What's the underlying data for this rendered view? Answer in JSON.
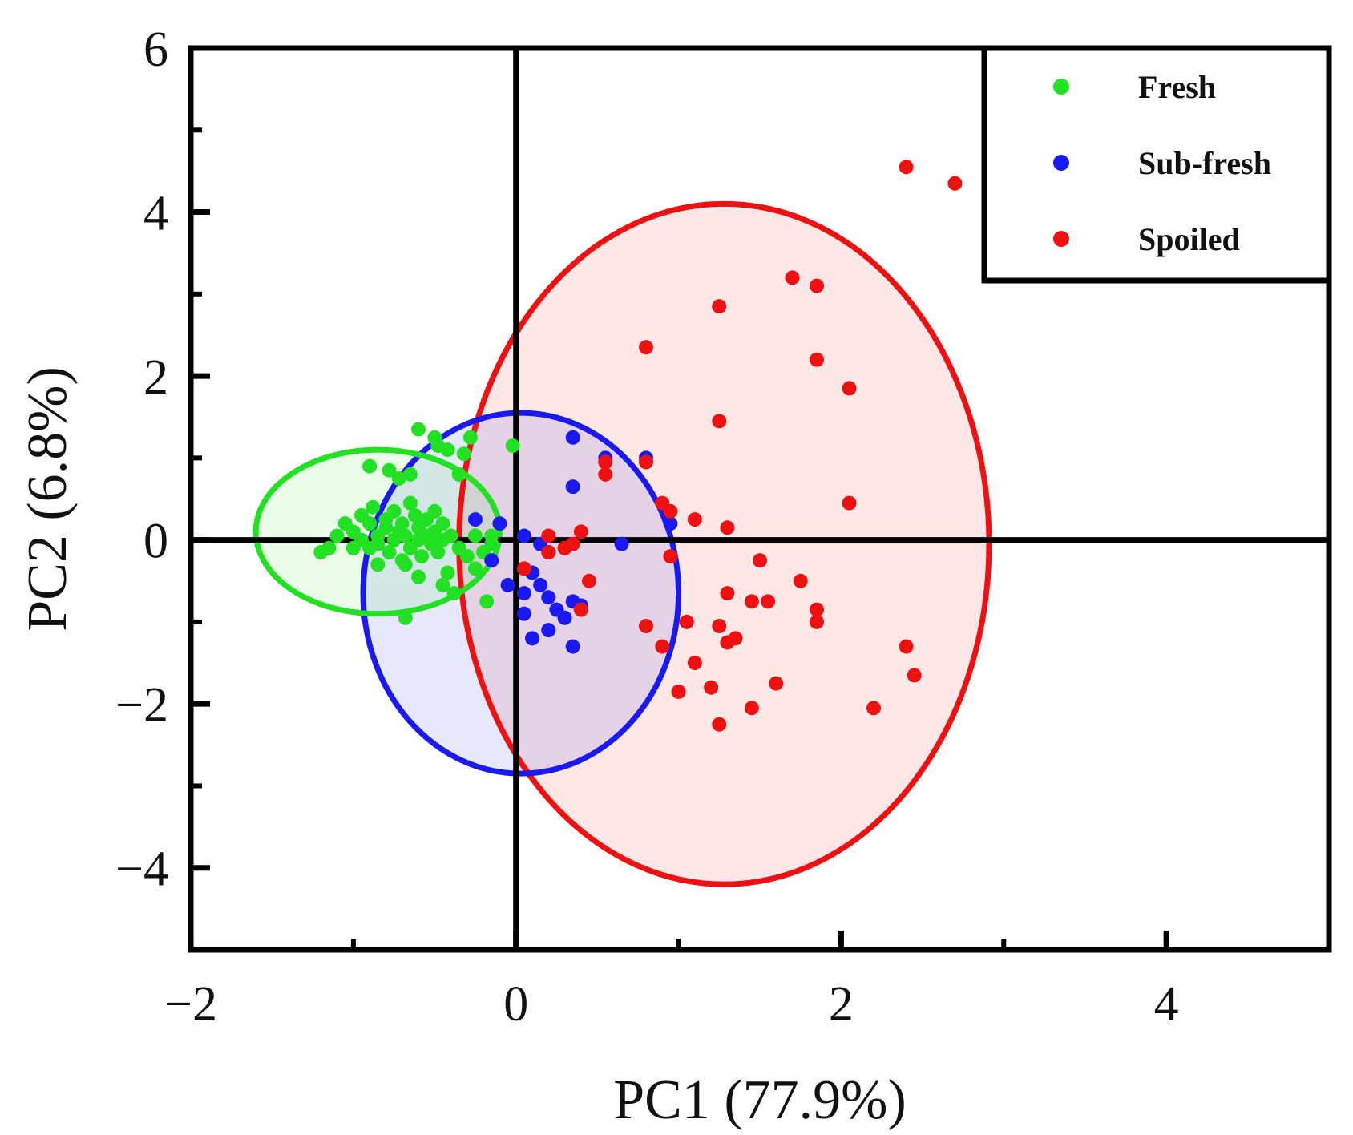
{
  "chart_data": {
    "type": "scatter",
    "title": "",
    "xlabel": "PC1 (77.9%)",
    "ylabel": "PC2 (6.8%)",
    "xlim": [
      -2,
      5
    ],
    "ylim": [
      -5,
      6
    ],
    "x_ticks": [
      -2,
      0,
      2,
      4
    ],
    "x_tick_labels": [
      "−2",
      "0",
      "2",
      "4"
    ],
    "y_ticks": [
      -4,
      -2,
      0,
      2,
      4,
      6
    ],
    "y_tick_labels": [
      "−4",
      "−2",
      "0",
      "2",
      "4",
      "6"
    ],
    "reference_lines": {
      "x": 0,
      "y": 0
    },
    "legend_position": "top-right",
    "series": [
      {
        "name": "Fresh",
        "color": "#22e022",
        "ellipse": {
          "center": [
            -0.85,
            0.1
          ],
          "radius_x": 0.75,
          "radius_y": 1.0
        },
        "points": [
          [
            -1.2,
            -0.15
          ],
          [
            -1.15,
            -0.1
          ],
          [
            -1.1,
            0.05
          ],
          [
            -1.05,
            0.2
          ],
          [
            -1.0,
            0.1
          ],
          [
            -1.0,
            -0.1
          ],
          [
            -0.95,
            0.3
          ],
          [
            -0.95,
            0.0
          ],
          [
            -0.9,
            -0.1
          ],
          [
            -0.9,
            0.2
          ],
          [
            -0.88,
            0.4
          ],
          [
            -0.85,
            0.05
          ],
          [
            -0.85,
            -0.05
          ],
          [
            -0.8,
            0.15
          ],
          [
            -0.8,
            0.25
          ],
          [
            -0.78,
            -0.15
          ],
          [
            -0.75,
            0.0
          ],
          [
            -0.75,
            0.35
          ],
          [
            -0.72,
            0.1
          ],
          [
            -0.7,
            -0.25
          ],
          [
            -0.7,
            0.2
          ],
          [
            -0.68,
            0.05
          ],
          [
            -0.65,
            -0.1
          ],
          [
            -0.65,
            0.45
          ],
          [
            -0.62,
            0.3
          ],
          [
            -0.6,
            0.0
          ],
          [
            -0.6,
            0.15
          ],
          [
            -0.58,
            -0.2
          ],
          [
            -0.55,
            0.25
          ],
          [
            -0.55,
            0.05
          ],
          [
            -0.52,
            -0.05
          ],
          [
            -0.5,
            0.35
          ],
          [
            -0.5,
            0.1
          ],
          [
            -0.48,
            -0.15
          ],
          [
            -0.45,
            0.2
          ],
          [
            -0.45,
            0.0
          ],
          [
            -0.4,
            0.05
          ],
          [
            -0.35,
            -0.1
          ],
          [
            -0.3,
            -0.2
          ],
          [
            -0.25,
            0.05
          ],
          [
            -0.2,
            -0.15
          ],
          [
            -0.15,
            -0.05
          ],
          [
            -0.9,
            0.9
          ],
          [
            -0.78,
            0.85
          ],
          [
            -0.6,
            1.35
          ],
          [
            -0.5,
            1.25
          ],
          [
            -0.48,
            1.15
          ],
          [
            -0.42,
            1.1
          ],
          [
            -0.32,
            1.05
          ],
          [
            -0.28,
            1.25
          ],
          [
            -0.02,
            1.15
          ],
          [
            -0.72,
            0.75
          ],
          [
            -0.65,
            0.8
          ],
          [
            -0.35,
            0.8
          ],
          [
            -0.68,
            -0.3
          ],
          [
            -0.6,
            -0.45
          ],
          [
            -0.45,
            -0.55
          ],
          [
            -0.42,
            -0.4
          ],
          [
            -0.25,
            -0.35
          ],
          [
            -0.18,
            -0.75
          ],
          [
            -0.68,
            -0.95
          ],
          [
            -0.85,
            -0.3
          ],
          [
            -0.38,
            -0.65
          ],
          [
            -0.15,
            0.05
          ]
        ]
      },
      {
        "name": "Sub-fresh",
        "color": "#1a1af0",
        "ellipse": {
          "center": [
            0.03,
            -0.65
          ],
          "radius_x": 0.97,
          "radius_y": 2.2
        },
        "points": [
          [
            0.35,
            1.25
          ],
          [
            0.55,
            1.0
          ],
          [
            0.8,
            1.0
          ],
          [
            0.35,
            0.65
          ],
          [
            0.95,
            0.2
          ],
          [
            -0.25,
            0.25
          ],
          [
            -0.1,
            0.2
          ],
          [
            0.05,
            0.05
          ],
          [
            0.15,
            -0.05
          ],
          [
            0.2,
            -0.15
          ],
          [
            0.65,
            -0.05
          ],
          [
            0.1,
            -0.4
          ],
          [
            0.05,
            -0.65
          ],
          [
            0.15,
            -0.55
          ],
          [
            0.2,
            -0.7
          ],
          [
            0.25,
            -0.85
          ],
          [
            0.3,
            -0.95
          ],
          [
            0.35,
            -0.75
          ],
          [
            0.4,
            -0.8
          ],
          [
            0.05,
            -0.9
          ],
          [
            0.2,
            -1.1
          ],
          [
            0.1,
            -1.2
          ],
          [
            0.35,
            -1.3
          ],
          [
            -0.15,
            -0.25
          ],
          [
            -0.05,
            -0.55
          ]
        ]
      },
      {
        "name": "Spoiled",
        "color": "#ee1111",
        "ellipse": {
          "center": [
            1.28,
            -0.05
          ],
          "radius_x": 1.63,
          "radius_y": 4.15
        },
        "points": [
          [
            2.4,
            4.55
          ],
          [
            2.7,
            4.35
          ],
          [
            1.7,
            3.2
          ],
          [
            1.85,
            3.1
          ],
          [
            1.25,
            2.85
          ],
          [
            0.8,
            2.35
          ],
          [
            1.85,
            2.2
          ],
          [
            2.05,
            1.85
          ],
          [
            1.25,
            1.45
          ],
          [
            2.05,
            0.45
          ],
          [
            0.55,
            0.95
          ],
          [
            0.55,
            0.8
          ],
          [
            0.8,
            0.95
          ],
          [
            0.9,
            0.45
          ],
          [
            0.95,
            0.35
          ],
          [
            1.1,
            0.25
          ],
          [
            1.3,
            0.15
          ],
          [
            0.4,
            0.1
          ],
          [
            0.2,
            0.05
          ],
          [
            0.35,
            -0.05
          ],
          [
            0.3,
            -0.1
          ],
          [
            0.2,
            -0.15
          ],
          [
            0.05,
            -0.35
          ],
          [
            0.45,
            -0.5
          ],
          [
            0.8,
            -1.05
          ],
          [
            0.95,
            -0.2
          ],
          [
            1.05,
            -1.0
          ],
          [
            1.25,
            -1.05
          ],
          [
            1.3,
            -0.65
          ],
          [
            1.45,
            -0.75
          ],
          [
            1.5,
            -0.25
          ],
          [
            1.55,
            -0.75
          ],
          [
            1.75,
            -0.5
          ],
          [
            1.85,
            -0.85
          ],
          [
            1.85,
            -1.0
          ],
          [
            0.9,
            -1.3
          ],
          [
            1.1,
            -1.5
          ],
          [
            1.2,
            -1.8
          ],
          [
            1.3,
            -1.25
          ],
          [
            1.35,
            -1.2
          ],
          [
            1.0,
            -1.85
          ],
          [
            1.45,
            -2.05
          ],
          [
            1.6,
            -1.75
          ],
          [
            1.25,
            -2.25
          ],
          [
            2.4,
            -1.3
          ],
          [
            2.45,
            -1.65
          ],
          [
            2.2,
            -2.05
          ],
          [
            0.4,
            -0.85
          ]
        ]
      }
    ]
  }
}
